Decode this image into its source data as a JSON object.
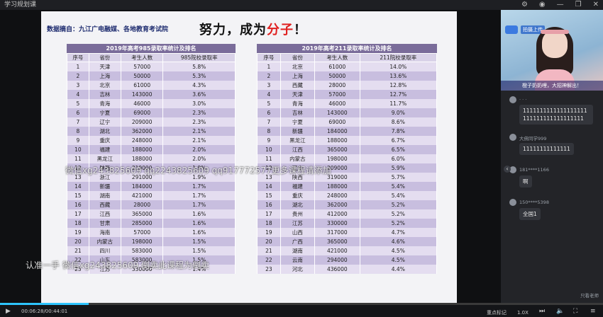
{
  "window": {
    "title": "学习规划课"
  },
  "slide": {
    "source": "数据摘自：九江广电融媒、各地教育考试院",
    "headline_black": "努力，成为",
    "headline_red": "分子",
    "headline_end": "！",
    "t985": {
      "title": "2019年高考985录取率统计及排名",
      "headers": [
        "序号",
        "省份",
        "考生人数",
        "985院校录取率"
      ],
      "rows": [
        [
          "1",
          "天津",
          "57000",
          "5.8%"
        ],
        [
          "2",
          "上海",
          "50000",
          "5.3%"
        ],
        [
          "3",
          "北京",
          "61000",
          "4.3%"
        ],
        [
          "4",
          "吉林",
          "143000",
          "3.6%"
        ],
        [
          "5",
          "青海",
          "46000",
          "3.0%"
        ],
        [
          "6",
          "宁夏",
          "69000",
          "2.3%"
        ],
        [
          "7",
          "辽宁",
          "209000",
          "2.3%"
        ],
        [
          "8",
          "湖北",
          "362000",
          "2.1%"
        ],
        [
          "9",
          "重庆",
          "248000",
          "2.1%"
        ],
        [
          "10",
          "福建",
          "188000",
          "2.0%"
        ],
        [
          "11",
          "黑龙江",
          "188000",
          "2.0%"
        ],
        [
          "12",
          "陕西",
          "319000",
          "1.9%"
        ],
        [
          "13",
          "浙江",
          "291000",
          "1.9%"
        ],
        [
          "14",
          "新疆",
          "184000",
          "1.7%"
        ],
        [
          "15",
          "湖南",
          "421000",
          "1.7%"
        ],
        [
          "16",
          "西藏",
          "28000",
          "1.7%"
        ],
        [
          "17",
          "江西",
          "365000",
          "1.6%"
        ],
        [
          "18",
          "甘肃",
          "285000",
          "1.6%"
        ],
        [
          "19",
          "海南",
          "57000",
          "1.6%"
        ],
        [
          "20",
          "内蒙古",
          "198000",
          "1.5%"
        ],
        [
          "21",
          "四川",
          "583000",
          "1.5%"
        ],
        [
          "22",
          "山东",
          "583000",
          "1.5%"
        ],
        [
          "23",
          "江苏",
          "330000",
          "1.4%"
        ]
      ]
    },
    "t211": {
      "title": "2019年高考211录取率统计及排名",
      "headers": [
        "序号",
        "省份",
        "考生人数",
        "211院校录取率"
      ],
      "rows": [
        [
          "1",
          "北京",
          "61000",
          "14.0%"
        ],
        [
          "2",
          "上海",
          "50000",
          "13.6%"
        ],
        [
          "3",
          "西藏",
          "28000",
          "12.8%"
        ],
        [
          "4",
          "天津",
          "57000",
          "12.7%"
        ],
        [
          "5",
          "青海",
          "46000",
          "11.7%"
        ],
        [
          "6",
          "吉林",
          "143000",
          "9.0%"
        ],
        [
          "7",
          "宁夏",
          "69000",
          "8.6%"
        ],
        [
          "8",
          "新疆",
          "184000",
          "7.8%"
        ],
        [
          "9",
          "黑龙江",
          "188000",
          "6.7%"
        ],
        [
          "10",
          "江西",
          "365000",
          "6.5%"
        ],
        [
          "11",
          "内蒙古",
          "198000",
          "6.0%"
        ],
        [
          "12",
          "辽宁",
          "209000",
          "5.9%"
        ],
        [
          "13",
          "陕西",
          "319000",
          "5.7%"
        ],
        [
          "14",
          "福建",
          "188000",
          "5.4%"
        ],
        [
          "15",
          "重庆",
          "248000",
          "5.4%"
        ],
        [
          "16",
          "湖北",
          "362000",
          "5.2%"
        ],
        [
          "17",
          "贵州",
          "412000",
          "5.2%"
        ],
        [
          "18",
          "江苏",
          "330000",
          "5.2%"
        ],
        [
          "19",
          "山西",
          "317000",
          "4.7%"
        ],
        [
          "20",
          "广西",
          "365000",
          "4.6%"
        ],
        [
          "21",
          "湖南",
          "421000",
          "4.5%"
        ],
        [
          "22",
          "云南",
          "294000",
          "4.5%"
        ],
        [
          "23",
          "河北",
          "436000",
          "4.4%"
        ]
      ]
    },
    "watermark1": "微信xg243825609 qq2243825609 qq917772577更多课程请添加",
    "watermark2": "认准一手 微信xg243825609 倒卖此课程为倒卖"
  },
  "side": {
    "live_label": "拍摄上传",
    "video_caption": "橙子奶奶哩，大招神解出！",
    "messages": [
      {
        "user": "· · ·",
        "text": "1111111111111111111111111111111111111"
      },
      {
        "user": "大佛同学999",
        "text": "11111111111111"
      },
      {
        "user": "181****1166",
        "text": "啊"
      },
      {
        "user": "150****5398",
        "text": "全国1"
      }
    ],
    "only_teacher": "只看老师"
  },
  "player": {
    "time": "00:06:28/00:44:01",
    "progress": 0.147,
    "mark_label": "重点标记",
    "speed": "1.0X",
    "icons": [
      "play-icon",
      "next-icon",
      "volume-icon",
      "fullscreen-icon"
    ]
  }
}
